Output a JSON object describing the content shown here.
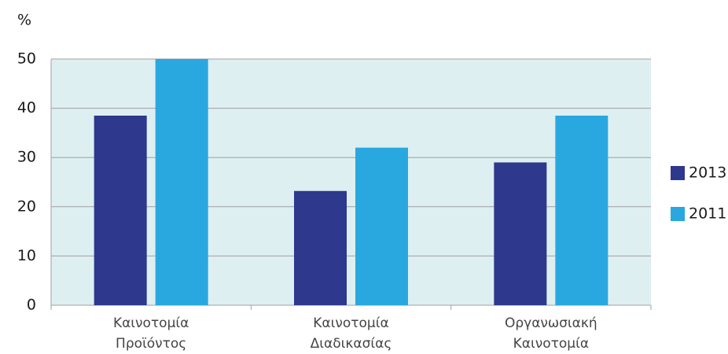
{
  "chart_data": {
    "type": "bar",
    "y_label": "%",
    "categories": [
      "Καινοτομία\nΠροϊόντος",
      "Καινοτομία\nΔιαδικασίας",
      "Οργανωσιακή\nΚαινοτομία"
    ],
    "series": [
      {
        "name": "2013",
        "color": "#2e388c",
        "values": [
          38.5,
          23.2,
          29
        ]
      },
      {
        "name": "2011",
        "color": "#29a8e0",
        "values": [
          50,
          32,
          38.5
        ]
      }
    ],
    "ylim": [
      0,
      50
    ],
    "yticks": [
      0,
      10,
      20,
      30,
      40,
      50
    ],
    "grid": true,
    "legend": "right"
  }
}
